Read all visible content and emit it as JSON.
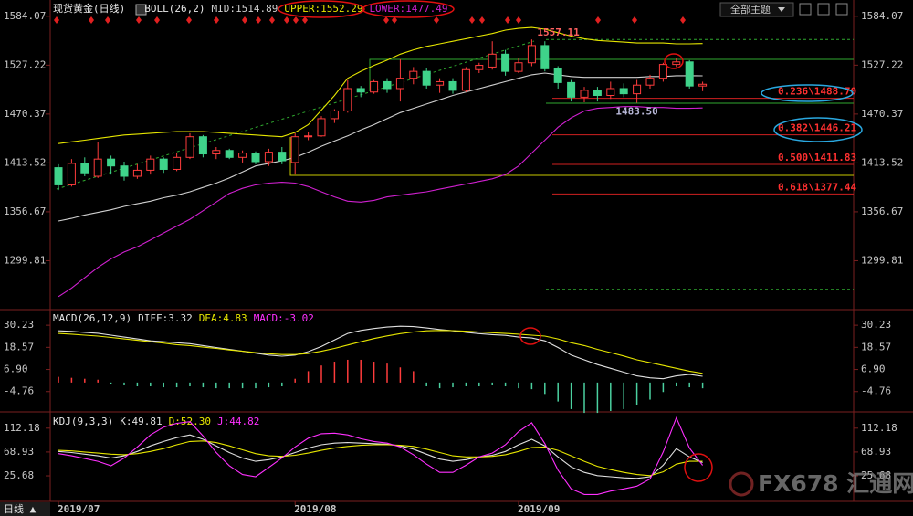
{
  "toolbar": {
    "theme": "全部主题",
    "period": "日线 ▲"
  },
  "watermark": "FX678 汇通网",
  "chart_data": [
    {
      "type": "candlestick",
      "title": "现货黄金(日线)",
      "indicator": "BOLL(26,2)",
      "categories": [
        "2019/07",
        null,
        null,
        null,
        null,
        null,
        null,
        null,
        null,
        null,
        null,
        null,
        null,
        null,
        null,
        null,
        null,
        null,
        "2019/08",
        null,
        null,
        null,
        null,
        null,
        null,
        null,
        null,
        null,
        null,
        null,
        null,
        null,
        null,
        null,
        null,
        "2019/09",
        null,
        null,
        null,
        null,
        null,
        null,
        null,
        null,
        null,
        null,
        null,
        null,
        null,
        null
      ],
      "open": [
        1408,
        1388,
        1413,
        1398,
        1418,
        1410,
        1398,
        1405,
        1418,
        1406,
        1420,
        1444,
        1424,
        1428,
        1420,
        1425,
        1415,
        1426,
        1414,
        1444,
        1445,
        1465,
        1474,
        1500,
        1496,
        1508,
        1500,
        1512,
        1520,
        1504,
        1508,
        1498,
        1522,
        1525,
        1540,
        1520,
        1530,
        1550,
        1523,
        1507,
        1490,
        1498,
        1492,
        1500,
        1494,
        1504,
        1512,
        1528,
        1531,
        1503
      ],
      "high": [
        1412,
        1418,
        1420,
        1438,
        1422,
        1415,
        1412,
        1422,
        1420,
        1425,
        1448,
        1446,
        1432,
        1430,
        1428,
        1427,
        1430,
        1432,
        1448,
        1450,
        1468,
        1476,
        1510,
        1503,
        1510,
        1512,
        1534,
        1525,
        1524,
        1512,
        1512,
        1525,
        1530,
        1555,
        1545,
        1535,
        1557.11,
        1555,
        1526,
        1510,
        1502,
        1502,
        1508,
        1506,
        1510,
        1516,
        1530,
        1535,
        1533,
        1508
      ],
      "low": [
        1382,
        1386,
        1398,
        1396,
        1400,
        1393,
        1395,
        1400,
        1402,
        1404,
        1418,
        1420,
        1418,
        1418,
        1414,
        1412,
        1410,
        1412,
        1400,
        1440,
        1444,
        1460,
        1472,
        1490,
        1494,
        1495,
        1485,
        1505,
        1500,
        1495,
        1494,
        1496,
        1518,
        1522,
        1515,
        1518,
        1526,
        1520,
        1500,
        1485,
        1484,
        1485,
        1488,
        1490,
        1483.5,
        1500,
        1508,
        1525,
        1500,
        1497
      ],
      "close": [
        1388,
        1413,
        1402,
        1418,
        1410,
        1398,
        1405,
        1418,
        1406,
        1420,
        1444,
        1424,
        1428,
        1420,
        1425,
        1415,
        1426,
        1416,
        1444,
        1445,
        1465,
        1474,
        1500,
        1496,
        1508,
        1500,
        1512,
        1520,
        1504,
        1508,
        1498,
        1522,
        1527,
        1540,
        1520,
        1530,
        1550,
        1523,
        1507,
        1490,
        1498,
        1492,
        1500,
        1494,
        1504,
        1512,
        1528,
        1531,
        1503,
        1505
      ],
      "up_color": "#ff3c3c",
      "down_color": "#3fd38a",
      "series": [
        {
          "name": "MID:1514.89",
          "color": "#d0d0d0",
          "values": [
            1346,
            1349,
            1353,
            1356,
            1359,
            1363,
            1366,
            1369,
            1373,
            1376,
            1380,
            1385,
            1390,
            1396,
            1403,
            1410,
            1413,
            1416,
            1420,
            1426,
            1433,
            1439,
            1445,
            1452,
            1458,
            1465,
            1472,
            1477,
            1482,
            1487,
            1492,
            1496,
            1500,
            1504,
            1508,
            1512,
            1516,
            1518,
            1516,
            1514,
            1513,
            1513,
            1513,
            1513,
            1513,
            1514,
            1514,
            1515,
            1515,
            1514.89
          ]
        },
        {
          "name": "UPPER:1552.29",
          "color": "#e6e600",
          "values": [
            1436,
            1438,
            1440,
            1442,
            1444,
            1446,
            1447,
            1448,
            1449,
            1450,
            1450,
            1450,
            1449,
            1448,
            1447,
            1446,
            1445,
            1444,
            1449,
            1458,
            1475,
            1492,
            1512,
            1520,
            1527,
            1533,
            1540,
            1545,
            1549,
            1552,
            1555,
            1558,
            1561,
            1564,
            1568,
            1570,
            1571,
            1569,
            1565,
            1561,
            1558,
            1556,
            1555,
            1554,
            1553,
            1553,
            1553,
            1552,
            1552,
            1552.29
          ]
        },
        {
          "name": "LOWER:1477.49",
          "color": "#d020d0",
          "values": [
            1258,
            1268,
            1280,
            1292,
            1302,
            1310,
            1316,
            1324,
            1332,
            1340,
            1348,
            1358,
            1368,
            1378,
            1384,
            1388,
            1390,
            1391,
            1390,
            1386,
            1380,
            1374,
            1369,
            1368,
            1370,
            1374,
            1376,
            1378,
            1380,
            1383,
            1386,
            1389,
            1392,
            1395,
            1400,
            1410,
            1425,
            1440,
            1455,
            1466,
            1474,
            1477,
            1478,
            1479,
            1479,
            1478,
            1478,
            1477,
            1477,
            1477.49
          ]
        }
      ],
      "annotations": [
        {
          "index": 36,
          "value": 1557.11,
          "color": "#ff6060"
        },
        {
          "index": 44,
          "value": 1483.5,
          "label": "1483.50",
          "color": "#b8b8d8"
        }
      ],
      "fibonacci": {
        "color": "#d02020",
        "label_color": "#ff3030",
        "range_color": "#2fa82f",
        "range": [
          1266.55,
          1557.11
        ],
        "levels": [
          {
            "value": 1488.7,
            "label": "0.236\\1488.70"
          },
          {
            "value": 1446.21,
            "label": "0.382\\1446.21"
          },
          {
            "value": 1411.83,
            "label": "0.500\\1411.83"
          },
          {
            "value": 1377.44,
            "label": "0.618\\1377.44"
          }
        ]
      },
      "ylim": [
        1244,
        1603
      ],
      "yticks": [
        1299.81,
        1356.67,
        1413.52,
        1470.37,
        1527.22,
        1584.07
      ]
    },
    {
      "type": "macd",
      "title": "MACD(26,12,9)",
      "up_color": "#ff3c3c",
      "down_color": "#4bd1a0",
      "series": [
        {
          "name": "DIFF:3.32",
          "color": "#e0e0e0",
          "values": [
            27.3,
            27,
            26.5,
            26,
            25,
            24,
            23,
            22,
            21.5,
            21,
            20.5,
            19.5,
            18.5,
            17.5,
            16.5,
            15.5,
            14.5,
            13.9,
            14.5,
            16.3,
            19,
            22.5,
            25.9,
            27.5,
            28.5,
            29.3,
            29.7,
            29.5,
            28.8,
            28,
            27.3,
            26.5,
            25.8,
            25.3,
            24.9,
            24,
            23.5,
            22,
            18.5,
            14.5,
            12,
            9.5,
            7.5,
            5.5,
            3.5,
            2.5,
            2,
            3.5,
            4.3,
            3.32
          ]
        },
        {
          "name": "DEA:4.83",
          "color": "#e6e600",
          "values": [
            25.9,
            25.5,
            25,
            24.5,
            23.8,
            23,
            22.3,
            21.5,
            20.8,
            20,
            19.5,
            18.7,
            18,
            17.2,
            16.5,
            15.8,
            15.2,
            14.8,
            14.8,
            15.3,
            16.5,
            18,
            19.8,
            21.5,
            23.2,
            24.6,
            25.8,
            26.7,
            27.3,
            27.5,
            27.4,
            27.1,
            26.7,
            26.3,
            25.9,
            25.5,
            25,
            24.5,
            23,
            21,
            19.5,
            17.5,
            15.8,
            14,
            12,
            10.5,
            9,
            7.5,
            6,
            4.83
          ]
        },
        {
          "name": "MACD:-3.02",
          "color": "#ff30ff",
          "style": "histogram",
          "values": [
            3,
            2.5,
            2,
            1.5,
            -1,
            -1.5,
            -2,
            -2,
            -2.5,
            -2.5,
            -2,
            -2.5,
            -3,
            -3,
            -3,
            -3,
            -2.5,
            -2,
            2,
            6,
            9,
            11,
            12,
            12,
            11,
            10,
            8,
            6,
            -2,
            -3,
            -2.5,
            -2,
            -2,
            -1.5,
            -2,
            -3,
            -3.5,
            -6,
            -10,
            -14,
            -16,
            -16,
            -15,
            -14,
            -12,
            -9,
            -5,
            -2,
            -2.5,
            -3.02
          ]
        }
      ],
      "ylim": [
        -15,
        38
      ],
      "yticks": [
        -4.76,
        {
          "value": 6.9,
          "label": "6.90"
        },
        18.57,
        30.23
      ]
    },
    {
      "type": "kdj",
      "title": "KDJ(9,3,3)",
      "series": [
        {
          "name": "K:49.81",
          "color": "#e0e0e0",
          "values": [
            70,
            68,
            65,
            62,
            58,
            62,
            70,
            80,
            88,
            95,
            100,
            92,
            80,
            68,
            58,
            52,
            55,
            60,
            68,
            76,
            82,
            85,
            86,
            85,
            84,
            83,
            80,
            74,
            65,
            56,
            52,
            55,
            60,
            63,
            70,
            82,
            92,
            80,
            60,
            42,
            32,
            26,
            24,
            22,
            21,
            24,
            45,
            75,
            60,
            49.81
          ]
        },
        {
          "name": "D:52.30",
          "color": "#e6e600",
          "values": [
            72,
            71,
            69,
            67,
            65,
            64,
            66,
            70,
            75,
            82,
            88,
            89,
            86,
            80,
            73,
            66,
            62,
            61,
            63,
            67,
            72,
            76,
            79,
            81,
            82,
            82,
            81,
            79,
            74,
            68,
            62,
            60,
            60,
            61,
            64,
            70,
            77,
            78,
            72,
            62,
            52,
            43,
            37,
            32,
            28,
            26,
            33,
            47,
            52,
            52.3
          ]
        },
        {
          "name": "J:44.82",
          "color": "#ff30ff",
          "values": [
            66,
            62,
            57,
            52,
            44,
            58,
            78,
            100,
            114,
            121,
            124,
            98,
            68,
            44,
            28,
            24,
            41,
            58,
            78,
            94,
            102,
            103,
            100,
            93,
            88,
            85,
            78,
            64,
            47,
            32,
            32,
            45,
            60,
            67,
            82,
            106,
            122,
            84,
            36,
            2,
            -8,
            -8,
            -2,
            2,
            7,
            20,
            69,
            131,
            76,
            44.82
          ]
        }
      ],
      "ylim": [
        -19,
        140
      ],
      "yticks": [
        25.68,
        68.93,
        112.18
      ]
    }
  ]
}
